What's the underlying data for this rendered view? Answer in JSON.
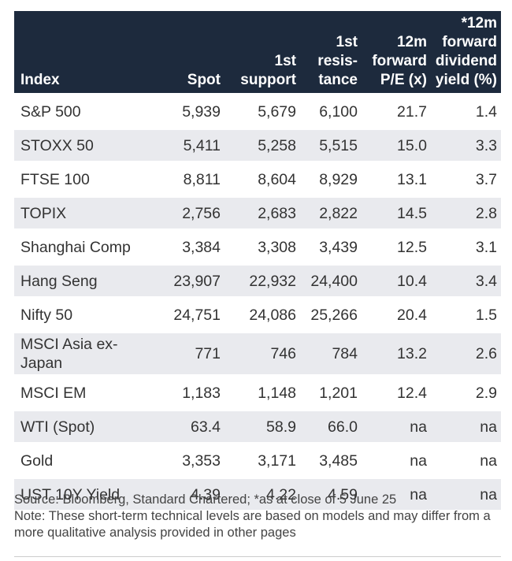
{
  "table": {
    "headers": [
      "Index",
      "Spot",
      "1st\nsupport",
      "1st\nresis-\ntance",
      "12m\nforward\nP/E (x)",
      "*12m\nforward\ndividend\nyield (%)"
    ],
    "rows": [
      [
        "S&P 500",
        "5,939",
        "5,679",
        "6,100",
        "21.7",
        "1.4"
      ],
      [
        "STOXX 50",
        "5,411",
        "5,258",
        "5,515",
        "15.0",
        "3.3"
      ],
      [
        "FTSE 100",
        "8,811",
        "8,604",
        "8,929",
        "13.1",
        "3.7"
      ],
      [
        "TOPIX",
        "2,756",
        "2,683",
        "2,822",
        "14.5",
        "2.8"
      ],
      [
        "Shanghai Comp",
        "3,384",
        "3,308",
        "3,439",
        "12.5",
        "3.1"
      ],
      [
        "Hang Seng",
        "23,907",
        "22,932",
        "24,400",
        "10.4",
        "3.4"
      ],
      [
        "Nifty 50",
        "24,751",
        "24,086",
        "25,266",
        "20.4",
        "1.5"
      ],
      [
        "MSCI Asia ex-\nJapan",
        "771",
        "746",
        "784",
        "13.2",
        "2.6"
      ],
      [
        "MSCI EM",
        "1,183",
        "1,148",
        "1,201",
        "12.4",
        "2.9"
      ],
      [
        "WTI (Spot)",
        "63.4",
        "58.9",
        "66.0",
        "na",
        "na"
      ],
      [
        "Gold",
        "3,353",
        "3,171",
        "3,485",
        "na",
        "na"
      ],
      [
        "UST 10Y Yield",
        "4.39",
        "4.22",
        "4.59",
        "na",
        "na"
      ]
    ]
  },
  "notes": {
    "source": "Source: Bloomberg, Standard Chartered; *as at close of 5 June 25",
    "note": "Note: These short-term technical levels are based on models and may differ from a more qualitative analysis provided in other pages"
  },
  "colors": {
    "header_bg": "#1d2a3d",
    "stripe_bg": "#e9eaee"
  }
}
